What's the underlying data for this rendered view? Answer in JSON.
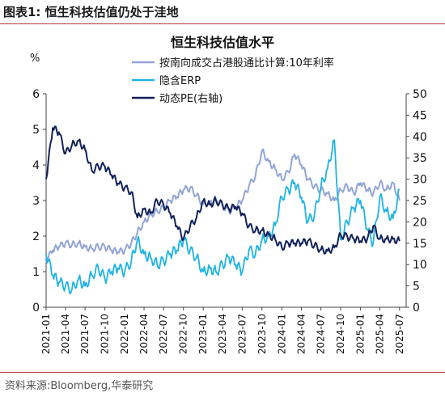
{
  "header": {
    "title": "图表1:  恒生科技估值仍处于洼地"
  },
  "footer": {
    "source": "资料来源:Bloomberg,华泰研究"
  },
  "colors": {
    "accent_rule": "#b33a3a",
    "series1": "#93a5d6",
    "series2": "#1fb3e6",
    "series3": "#12215a"
  },
  "chart_data": {
    "type": "line",
    "title": "恒生科技估值水平",
    "left_axis_unit": "%",
    "ylim_left": [
      0,
      6
    ],
    "yticks_left": [
      "0",
      "1",
      "2",
      "3",
      "4",
      "5",
      "6"
    ],
    "ylim_right": [
      0,
      50
    ],
    "yticks_right": [
      "0",
      "5",
      "10",
      "15",
      "20",
      "25",
      "30",
      "35",
      "40",
      "45",
      "50"
    ],
    "x_ticks": [
      "2021-01",
      "2021-04",
      "2021-07",
      "2021-10",
      "2022-01",
      "2022-04",
      "2022-07",
      "2022-10",
      "2023-01",
      "2023-04",
      "2023-07",
      "2023-10",
      "2024-01",
      "2024-04",
      "2024-07",
      "2024-10",
      "2025-01",
      "2025-04",
      "2025-07"
    ],
    "grid": false,
    "legend_position": "top-center",
    "series": [
      {
        "name": "按南向成交占港股通比计算:10年利率",
        "axis": "left",
        "points": [
          [
            "2021-01",
            1.3
          ],
          [
            "2021-02",
            1.6
          ],
          [
            "2021-03",
            1.7
          ],
          [
            "2021-04",
            1.8
          ],
          [
            "2021-05",
            1.75
          ],
          [
            "2021-06",
            1.8
          ],
          [
            "2021-07",
            1.7
          ],
          [
            "2021-08",
            1.65
          ],
          [
            "2021-09",
            1.7
          ],
          [
            "2021-10",
            1.7
          ],
          [
            "2021-11",
            1.6
          ],
          [
            "2021-12",
            1.55
          ],
          [
            "2022-01",
            1.6
          ],
          [
            "2022-02",
            1.8
          ],
          [
            "2022-03",
            2.1
          ],
          [
            "2022-04",
            2.4
          ],
          [
            "2022-05",
            2.6
          ],
          [
            "2022-06",
            2.7
          ],
          [
            "2022-07",
            2.8
          ],
          [
            "2022-08",
            3.0
          ],
          [
            "2022-09",
            3.1
          ],
          [
            "2022-10",
            3.3
          ],
          [
            "2022-11",
            3.35
          ],
          [
            "2022-12",
            3.15
          ],
          [
            "2023-01",
            2.9
          ],
          [
            "2023-02",
            2.95
          ],
          [
            "2023-03",
            3.05
          ],
          [
            "2023-04",
            2.85
          ],
          [
            "2023-05",
            2.7
          ],
          [
            "2023-06",
            2.8
          ],
          [
            "2023-07",
            3.0
          ],
          [
            "2023-08",
            3.4
          ],
          [
            "2023-09",
            3.7
          ],
          [
            "2023-10",
            4.4
          ],
          [
            "2023-11",
            4.1
          ],
          [
            "2023-12",
            3.9
          ],
          [
            "2024-01",
            3.6
          ],
          [
            "2024-02",
            3.8
          ],
          [
            "2024-03",
            4.3
          ],
          [
            "2024-04",
            4.0
          ],
          [
            "2024-05",
            3.6
          ],
          [
            "2024-06",
            3.4
          ],
          [
            "2024-07",
            3.3
          ],
          [
            "2024-08",
            3.2
          ],
          [
            "2024-09",
            3.0
          ],
          [
            "2024-10",
            3.3
          ],
          [
            "2024-11",
            3.4
          ],
          [
            "2024-12",
            3.2
          ],
          [
            "2025-01",
            3.5
          ],
          [
            "2025-02",
            3.3
          ],
          [
            "2025-03",
            3.2
          ],
          [
            "2025-04",
            3.5
          ],
          [
            "2025-05",
            3.3
          ],
          [
            "2025-06",
            3.5
          ],
          [
            "2025-07",
            3.0
          ]
        ]
      },
      {
        "name": "隐含ERP",
        "axis": "left",
        "points": [
          [
            "2021-01",
            1.5
          ],
          [
            "2021-02",
            0.9
          ],
          [
            "2021-03",
            0.7
          ],
          [
            "2021-04",
            0.6
          ],
          [
            "2021-05",
            0.5
          ],
          [
            "2021-06",
            0.8
          ],
          [
            "2021-07",
            0.6
          ],
          [
            "2021-08",
            0.9
          ],
          [
            "2021-09",
            1.1
          ],
          [
            "2021-10",
            0.8
          ],
          [
            "2021-11",
            1.0
          ],
          [
            "2021-12",
            1.1
          ],
          [
            "2022-01",
            1.0
          ],
          [
            "2022-02",
            1.3
          ],
          [
            "2022-03",
            1.9
          ],
          [
            "2022-04",
            1.5
          ],
          [
            "2022-05",
            1.4
          ],
          [
            "2022-06",
            1.2
          ],
          [
            "2022-07",
            1.3
          ],
          [
            "2022-08",
            1.5
          ],
          [
            "2022-09",
            1.6
          ],
          [
            "2022-10",
            1.9
          ],
          [
            "2022-11",
            1.6
          ],
          [
            "2022-12",
            1.4
          ],
          [
            "2023-01",
            1.0
          ],
          [
            "2023-02",
            1.1
          ],
          [
            "2023-03",
            1.0
          ],
          [
            "2023-04",
            1.2
          ],
          [
            "2023-05",
            1.4
          ],
          [
            "2023-06",
            1.2
          ],
          [
            "2023-07",
            1.0
          ],
          [
            "2023-08",
            1.6
          ],
          [
            "2023-09",
            1.5
          ],
          [
            "2023-10",
            1.9
          ],
          [
            "2023-11",
            2.0
          ],
          [
            "2023-12",
            2.3
          ],
          [
            "2024-01",
            3.1
          ],
          [
            "2024-02",
            3.3
          ],
          [
            "2024-03",
            3.5
          ],
          [
            "2024-04",
            3.1
          ],
          [
            "2024-05",
            2.4
          ],
          [
            "2024-06",
            2.6
          ],
          [
            "2024-07",
            3.4
          ],
          [
            "2024-08",
            3.9
          ],
          [
            "2024-09",
            4.7
          ],
          [
            "2024-10",
            1.9
          ],
          [
            "2024-11",
            2.4
          ],
          [
            "2024-12",
            2.8
          ],
          [
            "2025-01",
            3.0
          ],
          [
            "2025-02",
            2.2
          ],
          [
            "2025-03",
            1.8
          ],
          [
            "2025-04",
            3.1
          ],
          [
            "2025-05",
            2.7
          ],
          [
            "2025-06",
            2.5
          ],
          [
            "2025-07",
            3.3
          ]
        ]
      },
      {
        "name": "动态PE(右轴)",
        "axis": "right",
        "points": [
          [
            "2021-01",
            30
          ],
          [
            "2021-02",
            42
          ],
          [
            "2021-03",
            41
          ],
          [
            "2021-04",
            36
          ],
          [
            "2021-05",
            38
          ],
          [
            "2021-06",
            39
          ],
          [
            "2021-07",
            37
          ],
          [
            "2021-08",
            32
          ],
          [
            "2021-09",
            33
          ],
          [
            "2021-10",
            33
          ],
          [
            "2021-11",
            31
          ],
          [
            "2021-12",
            29
          ],
          [
            "2022-01",
            28
          ],
          [
            "2022-02",
            27
          ],
          [
            "2022-03",
            21
          ],
          [
            "2022-04",
            23
          ],
          [
            "2022-05",
            22
          ],
          [
            "2022-06",
            25
          ],
          [
            "2022-07",
            24
          ],
          [
            "2022-08",
            22
          ],
          [
            "2022-09",
            19
          ],
          [
            "2022-10",
            16
          ],
          [
            "2022-11",
            19
          ],
          [
            "2022-12",
            21
          ],
          [
            "2023-01",
            25
          ],
          [
            "2023-02",
            24
          ],
          [
            "2023-03",
            25
          ],
          [
            "2023-04",
            24
          ],
          [
            "2023-05",
            23
          ],
          [
            "2023-06",
            23.5
          ],
          [
            "2023-07",
            22
          ],
          [
            "2023-08",
            19
          ],
          [
            "2023-09",
            18
          ],
          [
            "2023-10",
            18
          ],
          [
            "2023-11",
            17
          ],
          [
            "2023-12",
            16
          ],
          [
            "2024-01",
            14
          ],
          [
            "2024-02",
            15
          ],
          [
            "2024-03",
            15
          ],
          [
            "2024-04",
            15
          ],
          [
            "2024-05",
            15.5
          ],
          [
            "2024-06",
            14.5
          ],
          [
            "2024-07",
            13.5
          ],
          [
            "2024-08",
            13.2
          ],
          [
            "2024-09",
            14
          ],
          [
            "2024-10",
            17
          ],
          [
            "2024-11",
            16.5
          ],
          [
            "2024-12",
            16
          ],
          [
            "2025-01",
            15.5
          ],
          [
            "2025-02",
            16
          ],
          [
            "2025-03",
            19
          ],
          [
            "2025-04",
            16
          ],
          [
            "2025-05",
            16
          ],
          [
            "2025-06",
            16
          ],
          [
            "2025-07",
            15.5
          ]
        ]
      }
    ]
  }
}
